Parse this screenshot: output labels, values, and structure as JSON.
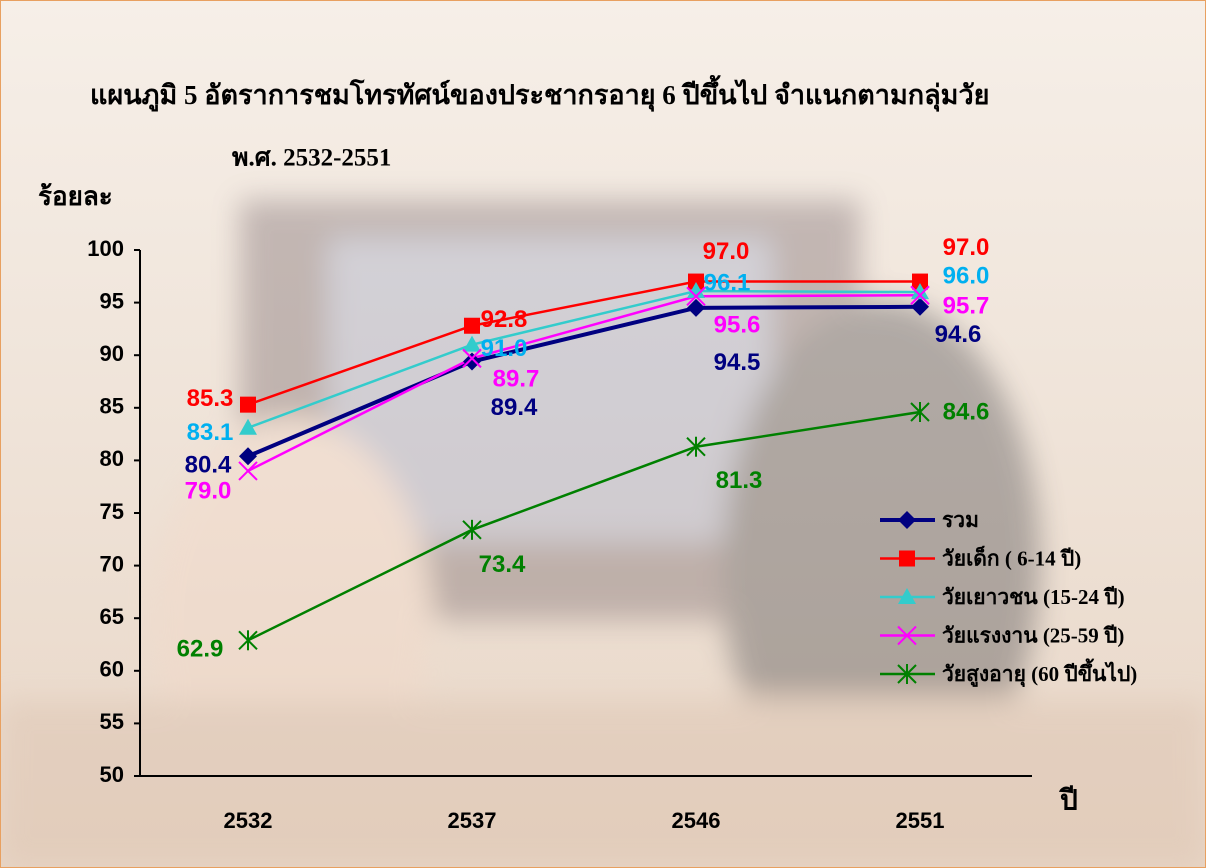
{
  "chart_data": {
    "type": "line",
    "title": "แผนภูมิ 5  อัตราการชมโทรทัศน์ของประชากรอายุ 6 ปีขึ้นไป จำแนกตามกลุ่มวัย",
    "subtitle": "พ.ศ. 2532-2551",
    "y_label": "ร้อยละ",
    "x_label": "ปี",
    "categories": [
      "2532",
      "2537",
      "2546",
      "2551"
    ],
    "ylim": [
      50,
      100
    ],
    "yticks": [
      50,
      55,
      60,
      65,
      70,
      75,
      80,
      85,
      90,
      95,
      100
    ],
    "series": [
      {
        "name": "รวม",
        "color": "#000080",
        "label_color": "#000080",
        "marker": "diamond",
        "values": [
          80.4,
          89.4,
          94.5,
          94.6
        ],
        "value_labels": [
          "80.4",
          "89.4",
          "94.5",
          "94.6"
        ]
      },
      {
        "name": "วัยเด็ก ( 6-14 ปี)",
        "color": "#ff0000",
        "label_color": "#ff0000",
        "marker": "square",
        "values": [
          85.3,
          92.8,
          97.0,
          97.0
        ],
        "value_labels": [
          "85.3",
          "92.8",
          "97.0",
          "97.0"
        ]
      },
      {
        "name": "วัยเยาวชน (15-24 ปี)",
        "color": "#33cccc",
        "label_color": "#00b0f0",
        "marker": "triangle",
        "values": [
          83.1,
          91.0,
          96.1,
          96.0
        ],
        "value_labels": [
          "83.1",
          "91.0",
          "96.1",
          "96.0"
        ]
      },
      {
        "name": "วัยแรงงาน (25-59 ปี)",
        "color": "#ff00ff",
        "label_color": "#ff00ff",
        "marker": "x",
        "values": [
          79.0,
          89.7,
          95.6,
          95.7
        ],
        "value_labels": [
          "79.0",
          "89.7",
          "95.6",
          "95.7"
        ]
      },
      {
        "name": "วัยสูงอายุ (60 ปีขึ้นไป)",
        "color": "#008000",
        "label_color": "#008000",
        "marker": "asterisk",
        "values": [
          62.9,
          73.4,
          81.3,
          84.6
        ],
        "value_labels": [
          "62.9",
          "73.4",
          "81.3",
          "84.6"
        ]
      }
    ]
  }
}
